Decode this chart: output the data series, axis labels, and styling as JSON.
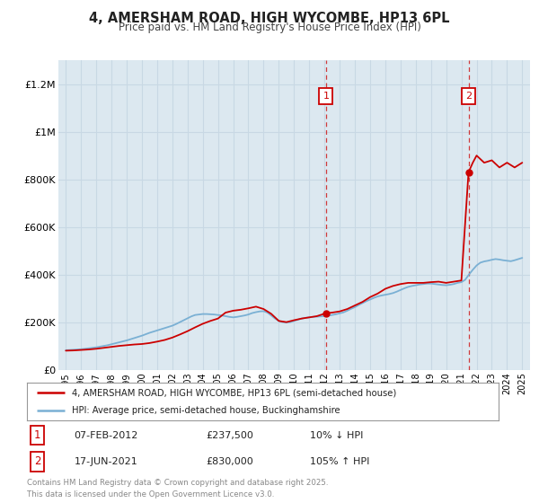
{
  "title": "4, AMERSHAM ROAD, HIGH WYCOMBE, HP13 6PL",
  "subtitle": "Price paid vs. HM Land Registry's House Price Index (HPI)",
  "ylim": [
    0,
    1300000
  ],
  "xlim": [
    1994.5,
    2025.5
  ],
  "yticks": [
    0,
    200000,
    400000,
    600000,
    800000,
    1000000,
    1200000
  ],
  "ytick_labels": [
    "£0",
    "£200K",
    "£400K",
    "£600K",
    "£800K",
    "£1M",
    "£1.2M"
  ],
  "xticks": [
    1995,
    1996,
    1997,
    1998,
    1999,
    2000,
    2001,
    2002,
    2003,
    2004,
    2005,
    2006,
    2007,
    2008,
    2009,
    2010,
    2011,
    2012,
    2013,
    2014,
    2015,
    2016,
    2017,
    2018,
    2019,
    2020,
    2021,
    2022,
    2023,
    2024,
    2025
  ],
  "xtick_labels": [
    "1995",
    "1996",
    "1997",
    "1998",
    "1999",
    "2000",
    "2001",
    "2002",
    "2003",
    "2004",
    "2005",
    "2006",
    "2007",
    "2008",
    "2009",
    "2010",
    "2011",
    "2012",
    "2013",
    "2014",
    "2015",
    "2016",
    "2017",
    "2018",
    "2019",
    "2020",
    "2021",
    "2022",
    "2023",
    "2024",
    "2025"
  ],
  "background_color": "#dce8f0",
  "grid_color": "#c8d8e4",
  "house_color": "#cc0000",
  "hpi_color": "#7ab0d4",
  "sale1_year": 2012.1,
  "sale1_price": 237500,
  "sale1_label": "1",
  "sale2_year": 2021.47,
  "sale2_price": 830000,
  "sale2_label": "2",
  "legend_house": "4, AMERSHAM ROAD, HIGH WYCOMBE, HP13 6PL (semi-detached house)",
  "legend_hpi": "HPI: Average price, semi-detached house, Buckinghamshire",
  "annotation1_date": "07-FEB-2012",
  "annotation1_price": "£237,500",
  "annotation1_hpi": "10% ↓ HPI",
  "annotation2_date": "17-JUN-2021",
  "annotation2_price": "£830,000",
  "annotation2_hpi": "105% ↑ HPI",
  "footer": "Contains HM Land Registry data © Crown copyright and database right 2025.\nThis data is licensed under the Open Government Licence v3.0.",
  "hpi_x": [
    1995,
    1995.25,
    1995.5,
    1995.75,
    1996,
    1996.25,
    1996.5,
    1996.75,
    1997,
    1997.25,
    1997.5,
    1997.75,
    1998,
    1998.25,
    1998.5,
    1998.75,
    1999,
    1999.25,
    1999.5,
    1999.75,
    2000,
    2000.25,
    2000.5,
    2000.75,
    2001,
    2001.25,
    2001.5,
    2001.75,
    2002,
    2002.25,
    2002.5,
    2002.75,
    2003,
    2003.25,
    2003.5,
    2003.75,
    2004,
    2004.25,
    2004.5,
    2004.75,
    2005,
    2005.25,
    2005.5,
    2005.75,
    2006,
    2006.25,
    2006.5,
    2006.75,
    2007,
    2007.25,
    2007.5,
    2007.75,
    2008,
    2008.25,
    2008.5,
    2008.75,
    2009,
    2009.25,
    2009.5,
    2009.75,
    2010,
    2010.25,
    2010.5,
    2010.75,
    2011,
    2011.25,
    2011.5,
    2011.75,
    2012,
    2012.25,
    2012.5,
    2012.75,
    2013,
    2013.25,
    2013.5,
    2013.75,
    2014,
    2014.25,
    2014.5,
    2014.75,
    2015,
    2015.25,
    2015.5,
    2015.75,
    2016,
    2016.25,
    2016.5,
    2016.75,
    2017,
    2017.25,
    2017.5,
    2017.75,
    2018,
    2018.25,
    2018.5,
    2018.75,
    2019,
    2019.25,
    2019.5,
    2019.75,
    2020,
    2020.25,
    2020.5,
    2020.75,
    2021,
    2021.25,
    2021.5,
    2021.75,
    2022,
    2022.25,
    2022.5,
    2022.75,
    2023,
    2023.25,
    2023.5,
    2023.75,
    2024,
    2024.25,
    2024.5,
    2024.75,
    2025
  ],
  "hpi_y": [
    82000,
    83000,
    84000,
    85000,
    86000,
    88000,
    90000,
    92000,
    94000,
    97000,
    100000,
    103000,
    107000,
    111000,
    115000,
    119000,
    123000,
    128000,
    133000,
    138000,
    143000,
    149000,
    155000,
    160000,
    165000,
    170000,
    175000,
    180000,
    185000,
    192000,
    200000,
    208000,
    216000,
    224000,
    230000,
    232000,
    234000,
    234000,
    233000,
    232000,
    230000,
    228000,
    225000,
    222000,
    220000,
    222000,
    225000,
    228000,
    232000,
    238000,
    242000,
    245000,
    246000,
    240000,
    228000,
    215000,
    205000,
    200000,
    198000,
    200000,
    205000,
    210000,
    215000,
    218000,
    220000,
    222000,
    223000,
    224000,
    225000,
    227000,
    230000,
    233000,
    237000,
    241000,
    248000,
    256000,
    263000,
    272000,
    280000,
    288000,
    295000,
    302000,
    308000,
    312000,
    315000,
    318000,
    322000,
    328000,
    335000,
    342000,
    348000,
    352000,
    355000,
    358000,
    360000,
    362000,
    362000,
    360000,
    358000,
    356000,
    355000,
    357000,
    360000,
    365000,
    368000,
    378000,
    400000,
    420000,
    438000,
    450000,
    455000,
    458000,
    462000,
    465000,
    463000,
    460000,
    458000,
    456000,
    460000,
    465000,
    470000
  ],
  "house_x": [
    1995.0,
    1995.5,
    1996.0,
    1996.5,
    1997.0,
    1997.5,
    1998.0,
    1998.5,
    1999.0,
    1999.5,
    2000.0,
    2000.5,
    2001.0,
    2001.5,
    2002.0,
    2002.5,
    2003.0,
    2003.5,
    2004.0,
    2004.5,
    2005.0,
    2005.5,
    2006.0,
    2006.5,
    2007.0,
    2007.5,
    2008.0,
    2008.5,
    2009.0,
    2009.5,
    2010.0,
    2010.5,
    2011.0,
    2011.5,
    2012.1,
    2012.5,
    2013.0,
    2013.5,
    2014.0,
    2014.5,
    2015.0,
    2015.5,
    2016.0,
    2016.5,
    2017.0,
    2017.5,
    2018.0,
    2018.5,
    2019.0,
    2019.5,
    2020.0,
    2020.5,
    2021.0,
    2021.47,
    2021.75,
    2022.0,
    2022.5,
    2023.0,
    2023.5,
    2024.0,
    2024.5,
    2025.0
  ],
  "house_y": [
    80000,
    81000,
    83000,
    85000,
    88000,
    92000,
    96000,
    100000,
    103000,
    106000,
    108000,
    112000,
    118000,
    125000,
    135000,
    148000,
    162000,
    178000,
    193000,
    205000,
    215000,
    240000,
    248000,
    252000,
    258000,
    265000,
    255000,
    235000,
    205000,
    200000,
    208000,
    215000,
    220000,
    225000,
    237500,
    240000,
    245000,
    255000,
    270000,
    285000,
    305000,
    320000,
    340000,
    352000,
    360000,
    365000,
    365000,
    365000,
    368000,
    370000,
    365000,
    370000,
    375000,
    830000,
    870000,
    900000,
    870000,
    880000,
    850000,
    870000,
    850000,
    870000
  ]
}
